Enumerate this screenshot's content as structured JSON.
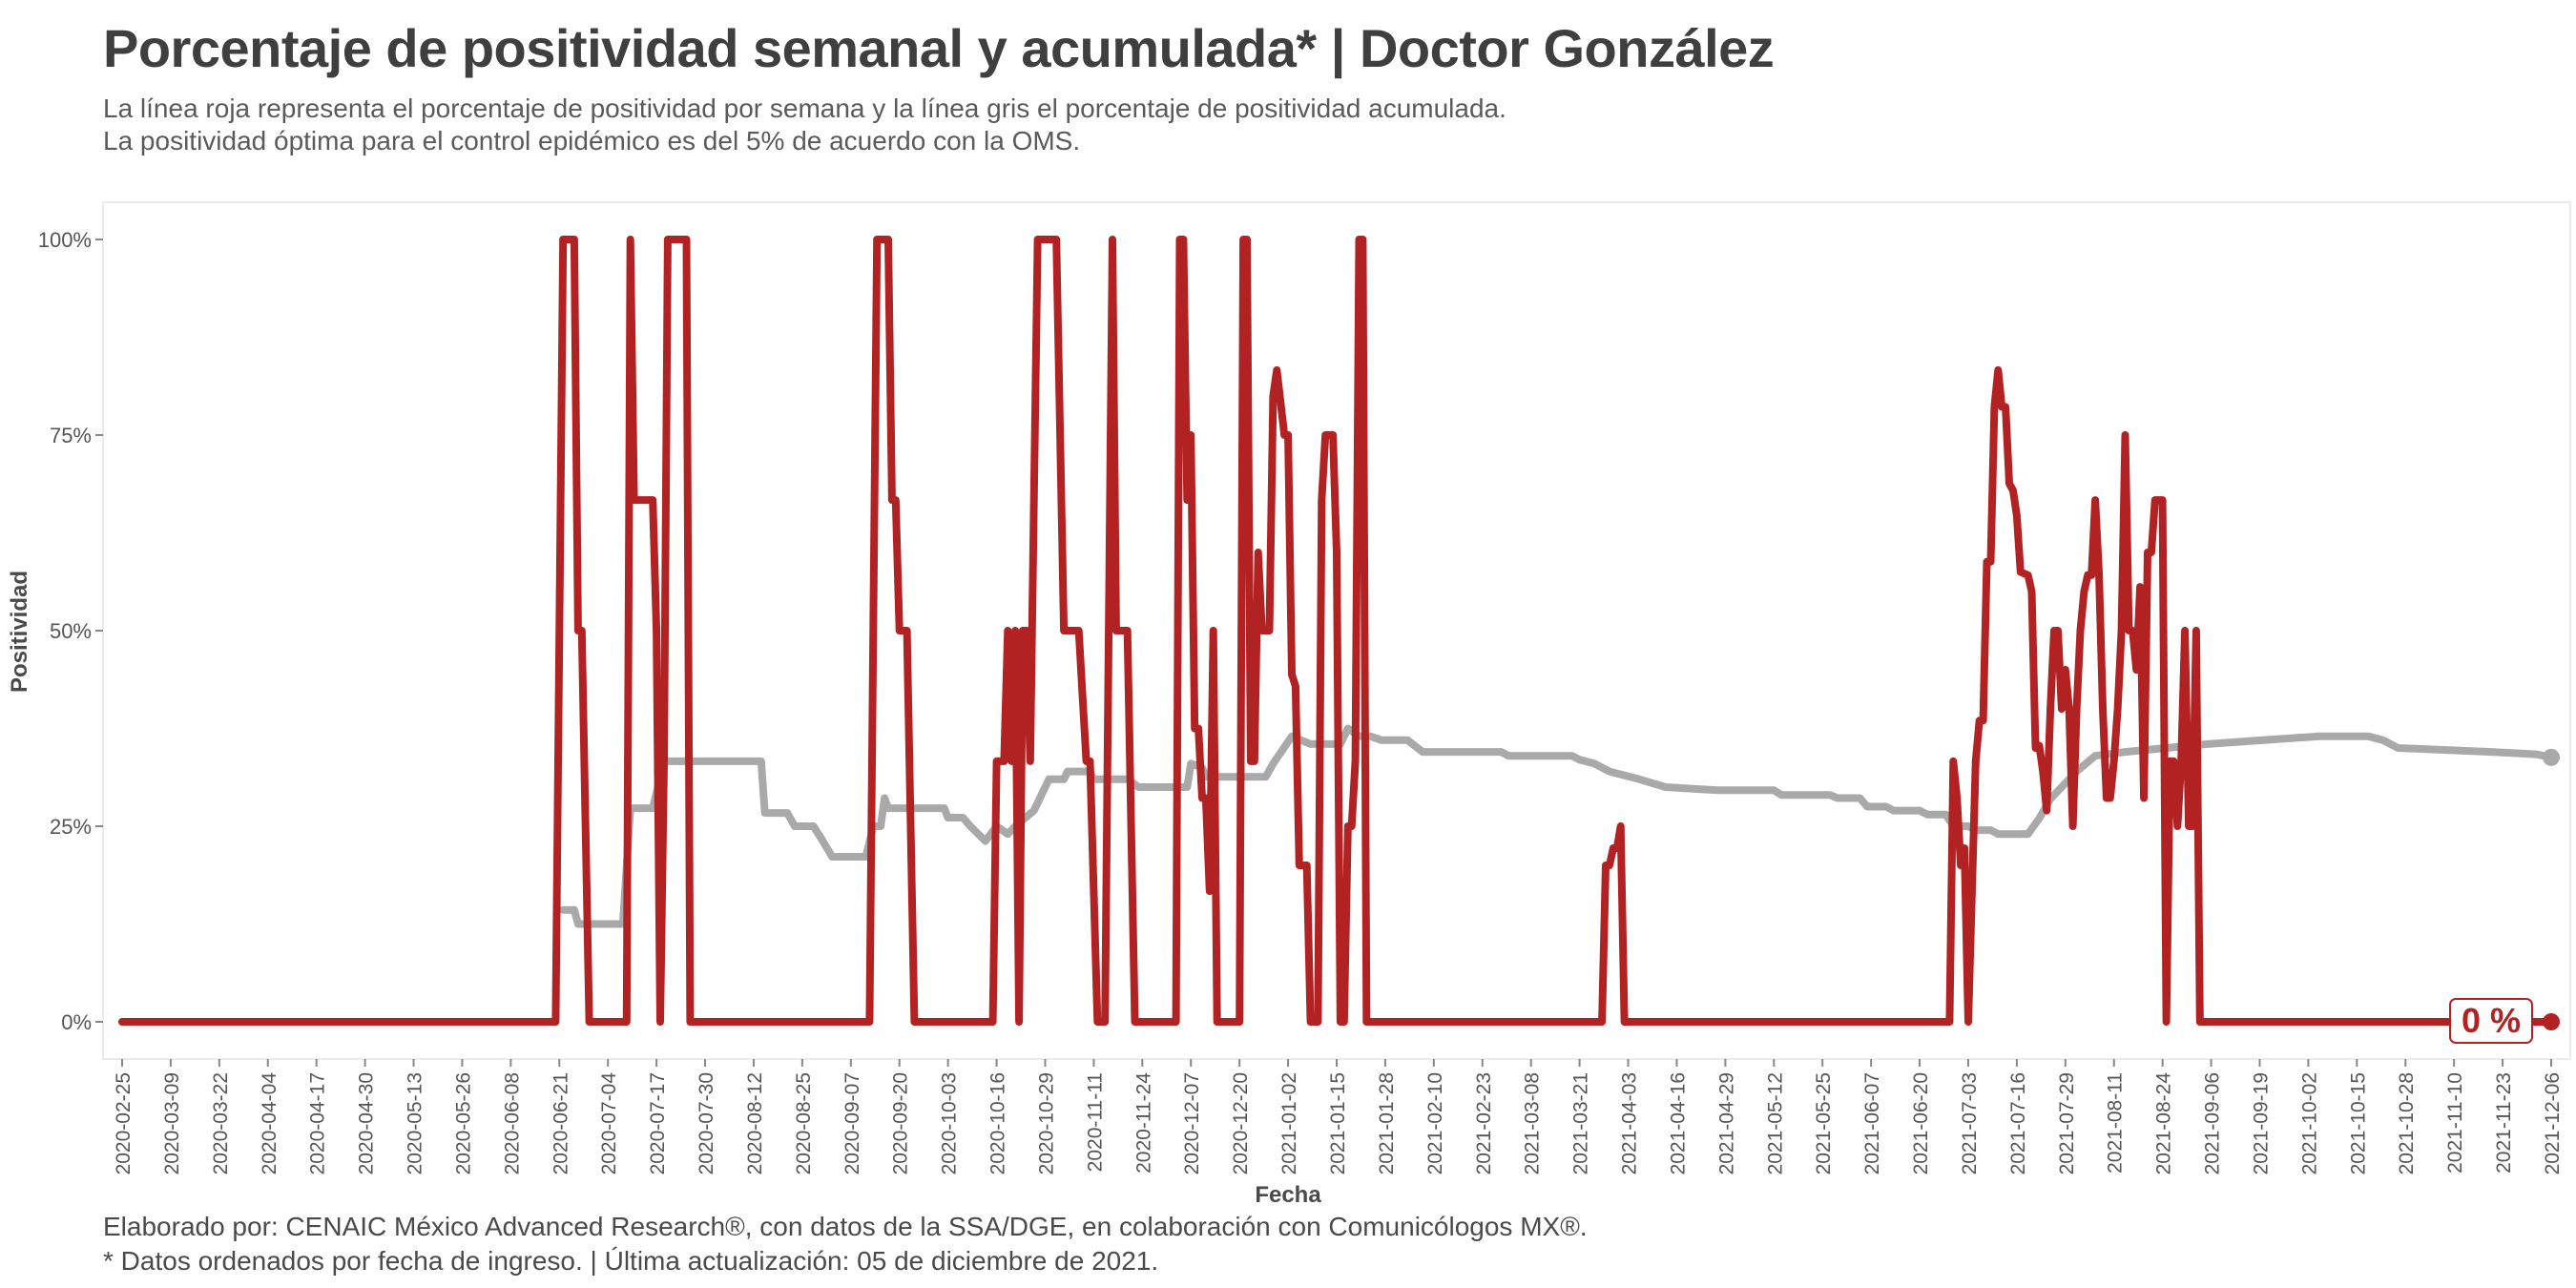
{
  "header": {
    "title": "Porcentaje de positividad semanal y acumulada* | Doctor González",
    "subtitle_line1": "La línea roja representa el porcentaje de positividad por semana y la línea gris el porcentaje de positividad acumulada.",
    "subtitle_line2": "La positividad óptima para el control epidémico es del 5% de acuerdo con la OMS."
  },
  "footer": {
    "caption_line1": "Elaborado por: CENAIC México Advanced Research®, con datos de la SSA/DGE, en colaboración con Comunicólogos MX®.",
    "caption_line2": "* Datos ordenados por fecha de ingreso. | Última actualización: 05 de diciembre de 2021."
  },
  "chart_data": {
    "type": "line",
    "xlabel": "Fecha",
    "ylabel": "Positividad",
    "x_range": [
      "2020-02-25",
      "2021-12-06"
    ],
    "ylim": [
      0,
      1
    ],
    "y_ticks": [
      {
        "value": 0,
        "label": "0%"
      },
      {
        "value": 0.25,
        "label": "25%"
      },
      {
        "value": 0.5,
        "label": "50%"
      },
      {
        "value": 0.75,
        "label": "75%"
      },
      {
        "value": 1,
        "label": "100%"
      }
    ],
    "x_ticks": [
      "2020-02-25",
      "2020-03-09",
      "2020-03-22",
      "2020-04-04",
      "2020-04-17",
      "2020-04-30",
      "2020-05-13",
      "2020-05-26",
      "2020-06-08",
      "2020-06-21",
      "2020-07-04",
      "2020-07-17",
      "2020-07-30",
      "2020-08-12",
      "2020-08-25",
      "2020-09-07",
      "2020-09-20",
      "2020-10-03",
      "2020-10-16",
      "2020-10-29",
      "2020-11-11",
      "2020-11-24",
      "2020-12-07",
      "2020-12-20",
      "2021-01-02",
      "2021-01-15",
      "2021-01-28",
      "2021-02-10",
      "2021-02-23",
      "2021-03-08",
      "2021-03-21",
      "2021-04-03",
      "2021-04-16",
      "2021-04-29",
      "2021-05-12",
      "2021-05-25",
      "2021-06-07",
      "2021-06-20",
      "2021-07-03",
      "2021-07-16",
      "2021-07-29",
      "2021-08-11",
      "2021-08-24",
      "2021-09-06",
      "2021-09-19",
      "2021-10-02",
      "2021-10-15",
      "2021-10-28",
      "2021-11-10",
      "2021-11-23",
      "2021-12-06"
    ],
    "grid": false,
    "end_label": "0 %",
    "colors": {
      "weekly": "#b22222",
      "cumulative": "#a9a9a9"
    },
    "series": [
      {
        "key": "weekly",
        "points": [
          [
            "2020-02-25",
            0
          ],
          [
            "2020-06-20",
            0
          ],
          [
            "2020-06-22",
            1
          ],
          [
            "2020-06-25",
            1
          ],
          [
            "2020-06-26",
            0.5
          ],
          [
            "2020-06-27",
            0.5
          ],
          [
            "2020-06-29",
            0
          ],
          [
            "2020-07-09",
            0
          ],
          [
            "2020-07-10",
            1
          ],
          [
            "2020-07-11",
            0.667
          ],
          [
            "2020-07-16",
            0.667
          ],
          [
            "2020-07-17",
            0.5
          ],
          [
            "2020-07-18",
            0
          ],
          [
            "2020-07-19",
            0.333
          ],
          [
            "2020-07-20",
            1
          ],
          [
            "2020-07-25",
            1
          ],
          [
            "2020-07-26",
            0
          ],
          [
            "2020-09-12",
            0
          ],
          [
            "2020-09-14",
            1
          ],
          [
            "2020-09-17",
            1
          ],
          [
            "2020-09-18",
            0.667
          ],
          [
            "2020-09-19",
            0.667
          ],
          [
            "2020-09-20",
            0.5
          ],
          [
            "2020-09-22",
            0.5
          ],
          [
            "2020-09-24",
            0
          ],
          [
            "2020-10-15",
            0
          ],
          [
            "2020-10-16",
            0.333
          ],
          [
            "2020-10-18",
            0.333
          ],
          [
            "2020-10-19",
            0.5
          ],
          [
            "2020-10-20",
            0.333
          ],
          [
            "2020-10-21",
            0.5
          ],
          [
            "2020-10-22",
            0
          ],
          [
            "2020-10-23",
            0.5
          ],
          [
            "2020-10-24",
            0.5
          ],
          [
            "2020-10-25",
            0.333
          ],
          [
            "2020-10-27",
            1
          ],
          [
            "2020-11-01",
            1
          ],
          [
            "2020-11-03",
            0.5
          ],
          [
            "2020-11-07",
            0.5
          ],
          [
            "2020-11-09",
            0.333
          ],
          [
            "2020-11-10",
            0.333
          ],
          [
            "2020-11-12",
            0
          ],
          [
            "2020-11-14",
            0
          ],
          [
            "2020-11-16",
            1
          ],
          [
            "2020-11-17",
            0.5
          ],
          [
            "2020-11-18",
            0.5
          ],
          [
            "2020-11-19",
            0.5
          ],
          [
            "2020-11-20",
            0.5
          ],
          [
            "2020-11-22",
            0
          ],
          [
            "2020-12-03",
            0
          ],
          [
            "2020-12-04",
            1
          ],
          [
            "2020-12-05",
            1
          ],
          [
            "2020-12-06",
            0.667
          ],
          [
            "2020-12-07",
            0.75
          ],
          [
            "2020-12-08",
            0.375
          ],
          [
            "2020-12-09",
            0.375
          ],
          [
            "2020-12-10",
            0.286
          ],
          [
            "2020-12-11",
            0.286
          ],
          [
            "2020-12-12",
            0.167
          ],
          [
            "2020-12-13",
            0.5
          ],
          [
            "2020-12-14",
            0
          ],
          [
            "2020-12-20",
            0
          ],
          [
            "2020-12-21",
            1
          ],
          [
            "2020-12-22",
            1
          ],
          [
            "2020-12-23",
            0.333
          ],
          [
            "2020-12-24",
            0.333
          ],
          [
            "2020-12-25",
            0.6
          ],
          [
            "2020-12-26",
            0.5
          ],
          [
            "2020-12-28",
            0.5
          ],
          [
            "2020-12-29",
            0.8
          ],
          [
            "2020-12-30",
            0.833
          ],
          [
            "2021-01-01",
            0.75
          ],
          [
            "2021-01-02",
            0.75
          ],
          [
            "2021-01-03",
            0.444
          ],
          [
            "2021-01-04",
            0.429
          ],
          [
            "2021-01-05",
            0.2
          ],
          [
            "2021-01-07",
            0.2
          ],
          [
            "2021-01-08",
            0
          ],
          [
            "2021-01-10",
            0
          ],
          [
            "2021-01-11",
            0.667
          ],
          [
            "2021-01-12",
            0.75
          ],
          [
            "2021-01-14",
            0.75
          ],
          [
            "2021-01-15",
            0.6
          ],
          [
            "2021-01-16",
            0
          ],
          [
            "2021-01-17",
            0
          ],
          [
            "2021-01-18",
            0.25
          ],
          [
            "2021-01-19",
            0.25
          ],
          [
            "2021-01-20",
            0.333
          ],
          [
            "2021-01-21",
            1
          ],
          [
            "2021-01-22",
            1
          ],
          [
            "2021-01-23",
            0
          ],
          [
            "2021-03-27",
            0
          ],
          [
            "2021-03-28",
            0.2
          ],
          [
            "2021-03-29",
            0.2
          ],
          [
            "2021-03-30",
            0.222
          ],
          [
            "2021-03-31",
            0.222
          ],
          [
            "2021-04-01",
            0.25
          ],
          [
            "2021-04-02",
            0
          ],
          [
            "2021-06-28",
            0
          ],
          [
            "2021-06-29",
            0.333
          ],
          [
            "2021-06-30",
            0.286
          ],
          [
            "2021-07-01",
            0.2
          ],
          [
            "2021-07-02",
            0.222
          ],
          [
            "2021-07-03",
            0
          ],
          [
            "2021-07-04",
            0.167
          ],
          [
            "2021-07-05",
            0.333
          ],
          [
            "2021-07-06",
            0.385
          ],
          [
            "2021-07-07",
            0.385
          ],
          [
            "2021-07-08",
            0.588
          ],
          [
            "2021-07-09",
            0.588
          ],
          [
            "2021-07-10",
            0.786
          ],
          [
            "2021-07-11",
            0.833
          ],
          [
            "2021-07-12",
            0.786
          ],
          [
            "2021-07-13",
            0.786
          ],
          [
            "2021-07-14",
            0.688
          ],
          [
            "2021-07-15",
            0.679
          ],
          [
            "2021-07-16",
            0.647
          ],
          [
            "2021-07-17",
            0.575
          ],
          [
            "2021-07-19",
            0.571
          ],
          [
            "2021-07-20",
            0.55
          ],
          [
            "2021-07-21",
            0.35
          ],
          [
            "2021-07-22",
            0.353
          ],
          [
            "2021-07-23",
            0.32
          ],
          [
            "2021-07-24",
            0.27
          ],
          [
            "2021-07-25",
            0.4
          ],
          [
            "2021-07-26",
            0.5
          ],
          [
            "2021-07-27",
            0.5
          ],
          [
            "2021-07-28",
            0.4
          ],
          [
            "2021-07-29",
            0.45
          ],
          [
            "2021-07-30",
            0.4
          ],
          [
            "2021-07-31",
            0.25
          ],
          [
            "2021-08-01",
            0.4
          ],
          [
            "2021-08-02",
            0.5
          ],
          [
            "2021-08-03",
            0.55
          ],
          [
            "2021-08-04",
            0.571
          ],
          [
            "2021-08-05",
            0.571
          ],
          [
            "2021-08-06",
            0.667
          ],
          [
            "2021-08-07",
            0.571
          ],
          [
            "2021-08-08",
            0.4
          ],
          [
            "2021-08-09",
            0.286
          ],
          [
            "2021-08-10",
            0.286
          ],
          [
            "2021-08-11",
            0.333
          ],
          [
            "2021-08-12",
            0.4
          ],
          [
            "2021-08-13",
            0.5
          ],
          [
            "2021-08-14",
            0.75
          ],
          [
            "2021-08-15",
            0.5
          ],
          [
            "2021-08-16",
            0.5
          ],
          [
            "2021-08-17",
            0.45
          ],
          [
            "2021-08-18",
            0.556
          ],
          [
            "2021-08-19",
            0.286
          ],
          [
            "2021-08-20",
            0.6
          ],
          [
            "2021-08-21",
            0.6
          ],
          [
            "2021-08-22",
            0.667
          ],
          [
            "2021-08-24",
            0.667
          ],
          [
            "2021-08-25",
            0
          ],
          [
            "2021-08-26",
            0.333
          ],
          [
            "2021-08-27",
            0.333
          ],
          [
            "2021-08-28",
            0.25
          ],
          [
            "2021-08-29",
            0.333
          ],
          [
            "2021-08-30",
            0.5
          ],
          [
            "2021-08-31",
            0.25
          ],
          [
            "2021-09-01",
            0.25
          ],
          [
            "2021-09-02",
            0.5
          ],
          [
            "2021-09-03",
            0
          ],
          [
            "2021-09-06",
            0
          ],
          [
            "2021-12-06",
            0
          ]
        ]
      },
      {
        "key": "cumulative",
        "points": [
          [
            "2020-06-22",
            0.143
          ],
          [
            "2020-06-25",
            0.143
          ],
          [
            "2020-06-26",
            0.125
          ],
          [
            "2020-07-08",
            0.125
          ],
          [
            "2020-07-10",
            0.273
          ],
          [
            "2020-07-16",
            0.273
          ],
          [
            "2020-07-19",
            0.333
          ],
          [
            "2020-08-14",
            0.333
          ],
          [
            "2020-08-15",
            0.267
          ],
          [
            "2020-08-21",
            0.267
          ],
          [
            "2020-08-23",
            0.25
          ],
          [
            "2020-08-28",
            0.25
          ],
          [
            "2020-08-30",
            0.235
          ],
          [
            "2020-09-02",
            0.211
          ],
          [
            "2020-09-11",
            0.211
          ],
          [
            "2020-09-13",
            0.25
          ],
          [
            "2020-09-15",
            0.25
          ],
          [
            "2020-09-16",
            0.286
          ],
          [
            "2020-09-17",
            0.273
          ],
          [
            "2020-10-02",
            0.273
          ],
          [
            "2020-10-03",
            0.261
          ],
          [
            "2020-10-07",
            0.261
          ],
          [
            "2020-10-09",
            0.25
          ],
          [
            "2020-10-13",
            0.231
          ],
          [
            "2020-10-16",
            0.25
          ],
          [
            "2020-10-19",
            0.24
          ],
          [
            "2020-10-21",
            0.25
          ],
          [
            "2020-10-26",
            0.27
          ],
          [
            "2020-10-30",
            0.31
          ],
          [
            "2020-11-03",
            0.31
          ],
          [
            "2020-11-04",
            0.32
          ],
          [
            "2020-11-10",
            0.32
          ],
          [
            "2020-11-11",
            0.31
          ],
          [
            "2020-11-20",
            0.31
          ],
          [
            "2020-11-23",
            0.3
          ],
          [
            "2020-12-06",
            0.3
          ],
          [
            "2020-12-07",
            0.33
          ],
          [
            "2020-12-10",
            0.325
          ],
          [
            "2020-12-11",
            0.313
          ],
          [
            "2020-12-27",
            0.313
          ],
          [
            "2020-12-29",
            0.33
          ],
          [
            "2021-01-03",
            0.365
          ],
          [
            "2021-01-08",
            0.355
          ],
          [
            "2021-01-16",
            0.355
          ],
          [
            "2021-01-18",
            0.375
          ],
          [
            "2021-01-21",
            0.365
          ],
          [
            "2021-01-24",
            0.365
          ],
          [
            "2021-01-27",
            0.36
          ],
          [
            "2021-02-03",
            0.36
          ],
          [
            "2021-02-07",
            0.345
          ],
          [
            "2021-02-28",
            0.345
          ],
          [
            "2021-03-02",
            0.34
          ],
          [
            "2021-03-19",
            0.34
          ],
          [
            "2021-03-21",
            0.335
          ],
          [
            "2021-03-25",
            0.33
          ],
          [
            "2021-03-29",
            0.32
          ],
          [
            "2021-04-06",
            0.31
          ],
          [
            "2021-04-13",
            0.3
          ],
          [
            "2021-04-27",
            0.296
          ],
          [
            "2021-05-12",
            0.296
          ],
          [
            "2021-05-14",
            0.29
          ],
          [
            "2021-05-27",
            0.29
          ],
          [
            "2021-05-29",
            0.286
          ],
          [
            "2021-06-04",
            0.286
          ],
          [
            "2021-06-06",
            0.275
          ],
          [
            "2021-06-11",
            0.275
          ],
          [
            "2021-06-13",
            0.27
          ],
          [
            "2021-06-20",
            0.27
          ],
          [
            "2021-06-22",
            0.265
          ],
          [
            "2021-06-27",
            0.265
          ],
          [
            "2021-06-29",
            0.25
          ],
          [
            "2021-07-03",
            0.25
          ],
          [
            "2021-07-05",
            0.245
          ],
          [
            "2021-07-09",
            0.245
          ],
          [
            "2021-07-11",
            0.24
          ],
          [
            "2021-07-19",
            0.24
          ],
          [
            "2021-07-22",
            0.26
          ],
          [
            "2021-07-25",
            0.285
          ],
          [
            "2021-08-01",
            0.32
          ],
          [
            "2021-08-06",
            0.34
          ],
          [
            "2021-08-14",
            0.345
          ],
          [
            "2021-08-25",
            0.35
          ],
          [
            "2021-09-05",
            0.355
          ],
          [
            "2021-09-20",
            0.36
          ],
          [
            "2021-10-05",
            0.365
          ],
          [
            "2021-10-18",
            0.365
          ],
          [
            "2021-10-22",
            0.36
          ],
          [
            "2021-10-26",
            0.35
          ],
          [
            "2021-11-05",
            0.348
          ],
          [
            "2021-11-20",
            0.345
          ],
          [
            "2021-12-02",
            0.342
          ],
          [
            "2021-12-06",
            0.338
          ]
        ]
      }
    ]
  }
}
